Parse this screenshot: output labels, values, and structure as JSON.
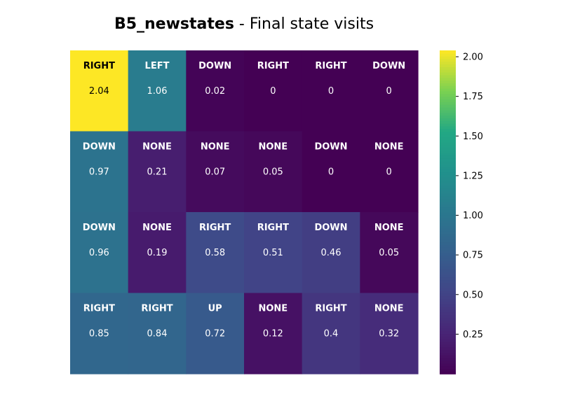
{
  "title": {
    "bold": "B5_newstates",
    "rest": " - Final state visits"
  },
  "chart_data": {
    "type": "heatmap",
    "rows": 4,
    "cols": 6,
    "values": [
      [
        2.04,
        1.06,
        0.02,
        0,
        0,
        0
      ],
      [
        0.97,
        0.21,
        0.07,
        0.05,
        0,
        0
      ],
      [
        0.96,
        0.19,
        0.58,
        0.51,
        0.46,
        0.05
      ],
      [
        0.85,
        0.84,
        0.72,
        0.12,
        0.4,
        0.32
      ]
    ],
    "actions": [
      [
        "RIGHT",
        "LEFT",
        "DOWN",
        "RIGHT",
        "RIGHT",
        "DOWN"
      ],
      [
        "DOWN",
        "NONE",
        "NONE",
        "NONE",
        "DOWN",
        "NONE"
      ],
      [
        "DOWN",
        "NONE",
        "RIGHT",
        "RIGHT",
        "DOWN",
        "NONE"
      ],
      [
        "RIGHT",
        "RIGHT",
        "UP",
        "NONE",
        "RIGHT",
        "NONE"
      ]
    ],
    "colormap": "viridis",
    "vmin": 0,
    "vmax": 2.04,
    "colorbar_ticks": [
      "0.25",
      "0.50",
      "0.75",
      "1.00",
      "1.25",
      "1.50",
      "1.75",
      "2.00"
    ]
  }
}
